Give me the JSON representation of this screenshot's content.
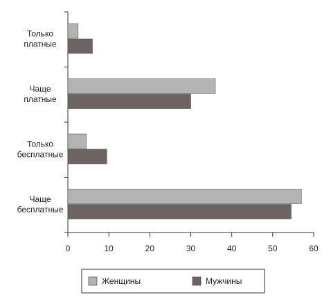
{
  "chart_data": {
    "type": "barh",
    "categories": [
      "Только платные",
      "Чаще платные",
      "Только бесплатные",
      "Чаще бесплатные"
    ],
    "series": [
      {
        "name": "Женщины",
        "color": "#b4b4b4",
        "values": [
          2.5,
          36,
          4.5,
          57
        ]
      },
      {
        "name": "Мужчины",
        "color": "#6e6363",
        "values": [
          6,
          30,
          9.5,
          54.5
        ]
      }
    ],
    "xlim": [
      0,
      60
    ],
    "xticks": [
      0,
      10,
      20,
      30,
      40,
      50,
      60
    ],
    "legend": "bottom"
  }
}
